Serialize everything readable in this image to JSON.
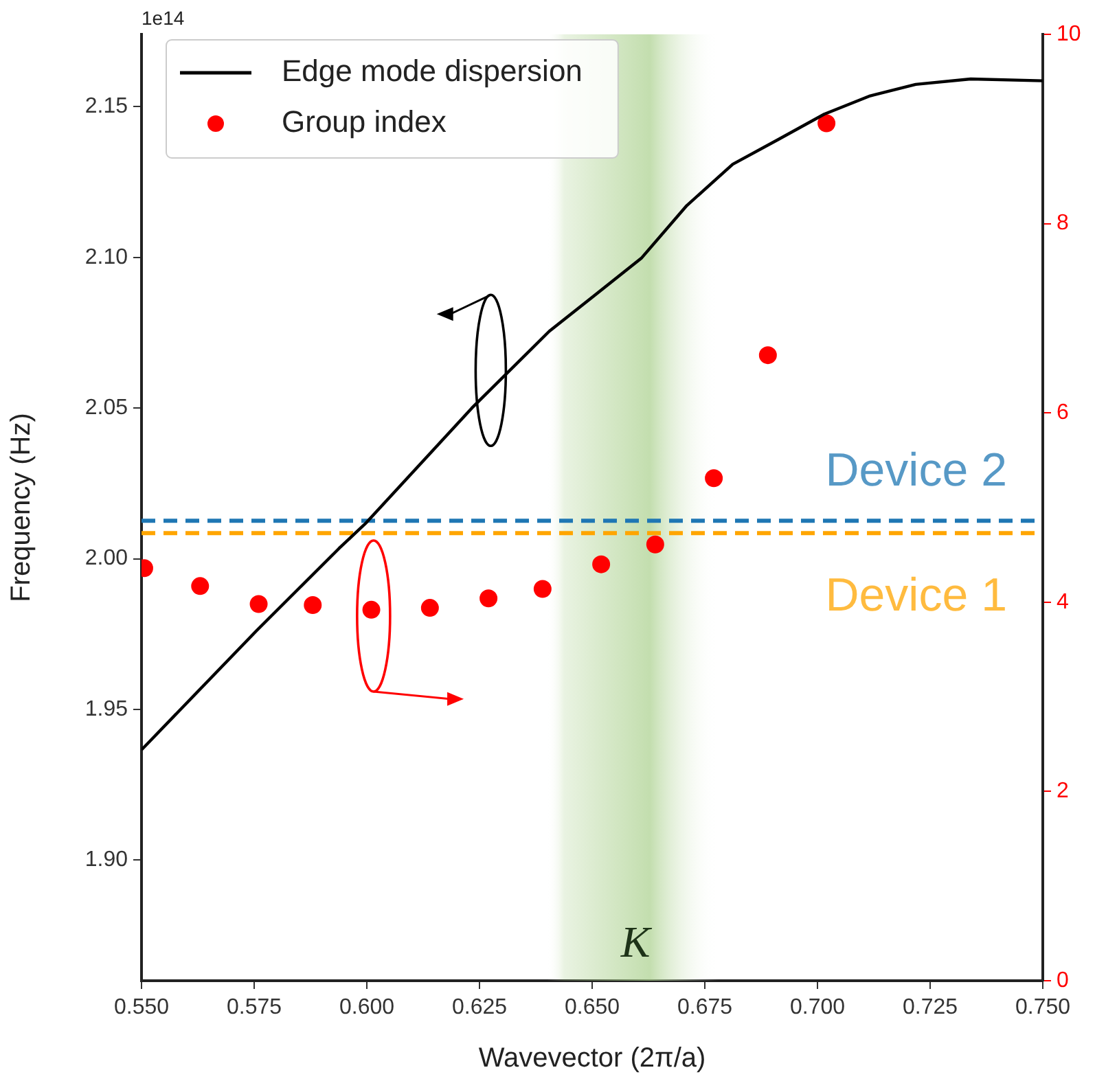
{
  "chart_data": {
    "type": "line",
    "xlabel": "Wavevector (2π/a)",
    "ylabel": "Frequency (Hz)",
    "xlim": [
      0.55,
      0.75
    ],
    "xticks": [
      {
        "value": 0.55,
        "label": "0.550"
      },
      {
        "value": 0.575,
        "label": "0.575"
      },
      {
        "value": 0.6,
        "label": "0.600"
      },
      {
        "value": 0.625,
        "label": "0.625"
      },
      {
        "value": 0.65,
        "label": "0.650"
      },
      {
        "value": 0.675,
        "label": "0.675"
      },
      {
        "value": 0.7,
        "label": "0.700"
      },
      {
        "value": 0.725,
        "label": "0.725"
      },
      {
        "value": 0.75,
        "label": "0.750"
      }
    ],
    "ylim": [
      1.86,
      2.174
    ],
    "yticks": [
      {
        "value": 1.9,
        "label": "1.90"
      },
      {
        "value": 1.95,
        "label": "1.95"
      },
      {
        "value": 2.0,
        "label": "2.00"
      },
      {
        "value": 2.05,
        "label": "2.05"
      },
      {
        "value": 2.1,
        "label": "2.10"
      },
      {
        "value": 2.15,
        "label": "2.15"
      }
    ],
    "y2lim": [
      0,
      10
    ],
    "y2ticks": [
      0,
      2,
      4,
      6,
      8,
      10
    ],
    "series": [
      {
        "name": "Edge mode dispersion",
        "color": "#000000",
        "x": [
          0.55,
          0.5755,
          0.5938,
          0.5997,
          0.6233,
          0.6405,
          0.6507,
          0.6609,
          0.671,
          0.6812,
          0.6914,
          0.7015,
          0.7117,
          0.7218,
          0.734,
          0.75
        ],
        "values": [
          1.9366,
          1.9761,
          2.0034,
          2.0117,
          2.05,
          2.0755,
          2.0876,
          2.0997,
          2.1172,
          2.1309,
          2.1392,
          2.1475,
          2.1536,
          2.1574,
          2.1592,
          2.1586
        ]
      },
      {
        "name": "Group index",
        "type": "scatter",
        "axis": "y2",
        "color": "#ff0000",
        "marker": "circle",
        "x": [
          0.5506,
          0.563,
          0.576,
          0.588,
          0.601,
          0.614,
          0.627,
          0.639,
          0.652,
          0.664,
          0.677,
          0.689,
          0.702
        ],
        "values": [
          4.36,
          4.17,
          3.98,
          3.97,
          3.92,
          3.94,
          4.04,
          4.14,
          4.4,
          4.61,
          5.31,
          6.61,
          9.06
        ]
      }
    ],
    "ref_lines": [
      {
        "axis": "y",
        "value": 2.0126,
        "label": "Device 2",
        "color": "#1f77b4",
        "line_style": "dashed"
      },
      {
        "axis": "y",
        "value": 2.0085,
        "label": "Device 1",
        "color": "#ffa500",
        "line_style": "dashed"
      }
    ],
    "bands": [
      {
        "axis": "x",
        "from": 0.64,
        "to": 0.678,
        "label": "K",
        "color": "#a8cf8a"
      }
    ],
    "annotations": [
      "1e14"
    ],
    "legend": "top left",
    "grid": false
  }
}
